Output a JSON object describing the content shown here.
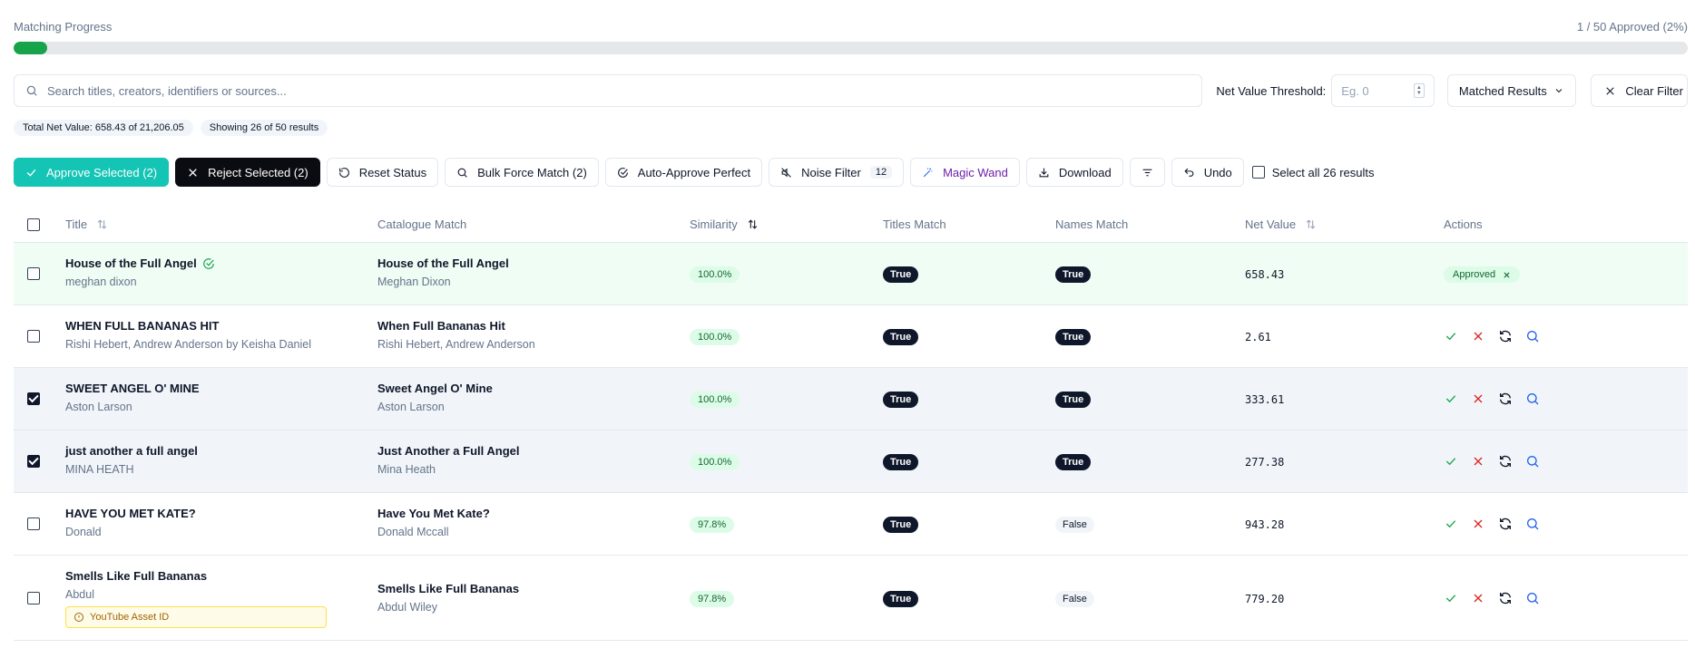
{
  "progress": {
    "label": "Matching Progress",
    "status": "1 / 50 Approved (2%)",
    "fraction": 0.02
  },
  "search": {
    "placeholder": "Search titles, creators, identifiers or sources..."
  },
  "net_value_threshold": {
    "label": "Net Value Threshold:",
    "placeholder": "Eg. 0"
  },
  "results_filter": {
    "selected": "Matched Results"
  },
  "clear_filter_label": "Clear Filter",
  "summary": {
    "total_net_value": "Total Net Value: 658.43 of 21,206.05",
    "showing": "Showing 26 of 50 results"
  },
  "toolbar": {
    "approve_selected": "Approve Selected (2)",
    "reject_selected": "Reject Selected (2)",
    "reset_status": "Reset Status",
    "bulk_force_match": "Bulk Force Match (2)",
    "auto_approve": "Auto-Approve Perfect",
    "noise_filter": "Noise Filter",
    "noise_count": "12",
    "magic_wand": "Magic Wand",
    "download": "Download",
    "undo": "Undo",
    "select_all": "Select all 26 results"
  },
  "columns": {
    "title": "Title",
    "catalogue": "Catalogue Match",
    "similarity": "Similarity",
    "titles_match": "Titles Match",
    "names_match": "Names Match",
    "net_value": "Net Value",
    "actions": "Actions"
  },
  "rows": [
    {
      "title": "House of the Full Angel",
      "creator": "meghan dixon",
      "cat_title": "House of the Full Angel",
      "cat_creator": "Meghan Dixon",
      "similarity": "100.0%",
      "titles_match": "True",
      "names_match": "True",
      "net_value": "658.43",
      "status": "Approved",
      "checked": false
    },
    {
      "title": "WHEN FULL BANANAS HIT",
      "creator": "Rishi Hebert, Andrew Anderson by Keisha Daniel",
      "cat_title": "When Full Bananas Hit",
      "cat_creator": "Rishi Hebert, Andrew Anderson",
      "similarity": "100.0%",
      "titles_match": "True",
      "names_match": "True",
      "net_value": "2.61",
      "checked": false
    },
    {
      "title": "SWEET ANGEL O' MINE",
      "creator": "Aston Larson",
      "cat_title": "Sweet Angel O' Mine",
      "cat_creator": "Aston Larson",
      "similarity": "100.0%",
      "titles_match": "True",
      "names_match": "True",
      "net_value": "333.61",
      "checked": true
    },
    {
      "title": "just another a full angel",
      "creator": "MINA HEATH",
      "cat_title": "Just Another a Full Angel",
      "cat_creator": "Mina Heath",
      "similarity": "100.0%",
      "titles_match": "True",
      "names_match": "True",
      "net_value": "277.38",
      "checked": true
    },
    {
      "title": "HAVE YOU MET KATE?",
      "creator": "Donald",
      "cat_title": "Have You Met Kate?",
      "cat_creator": "Donald Mccall",
      "similarity": "97.8%",
      "titles_match": "True",
      "names_match": "False",
      "net_value": "943.28",
      "checked": false
    },
    {
      "title": "Smells Like Full Bananas",
      "creator": "Abdul",
      "cat_title": "Smells Like Full Bananas",
      "cat_creator": "Abdul Wiley",
      "similarity": "97.8%",
      "titles_match": "True",
      "names_match": "False",
      "net_value": "779.20",
      "tag": "YouTube Asset ID",
      "checked": false
    }
  ],
  "colors": {
    "progress_fill": "#16a34a",
    "approve": "#14c4b4",
    "reject": "#0b0b12",
    "magic": "#6b21a8",
    "approved_row": "#f0fdf4"
  }
}
